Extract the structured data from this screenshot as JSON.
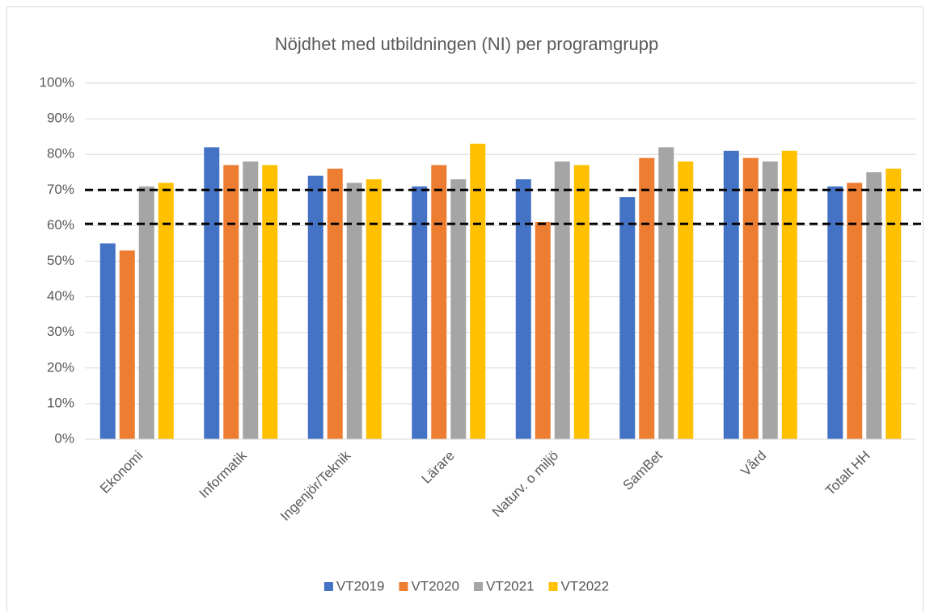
{
  "chart_data": {
    "type": "bar",
    "title": "Nöjdhet med utbildningen (NI) per programgrupp",
    "categories": [
      "Ekonomi",
      "Informatik",
      "Ingenjör/Teknik",
      "Lärare",
      "Naturv. o miljö",
      "SamBet",
      "Vård",
      "Totalt HH"
    ],
    "series": [
      {
        "name": "VT2019",
        "color": "#4472c4",
        "values": [
          55,
          82,
          74,
          71,
          73,
          68,
          81,
          71
        ]
      },
      {
        "name": "VT2020",
        "color": "#ed7d31",
        "values": [
          53,
          77,
          76,
          77,
          61,
          79,
          79,
          72
        ]
      },
      {
        "name": "VT2021",
        "color": "#a5a5a5",
        "values": [
          71,
          78,
          72,
          73,
          78,
          82,
          78,
          75
        ]
      },
      {
        "name": "VT2022",
        "color": "#ffc000",
        "values": [
          72,
          77,
          73,
          83,
          77,
          78,
          81,
          76
        ]
      }
    ],
    "ylim": [
      0,
      100
    ],
    "yticks": [
      {
        "value": 0,
        "label": "0%"
      },
      {
        "value": 10,
        "label": "10%"
      },
      {
        "value": 20,
        "label": "20%"
      },
      {
        "value": 30,
        "label": "30%"
      },
      {
        "value": 40,
        "label": "40%"
      },
      {
        "value": 50,
        "label": "50%"
      },
      {
        "value": 60,
        "label": "60%"
      },
      {
        "value": 70,
        "label": "70%"
      },
      {
        "value": 80,
        "label": "80%"
      },
      {
        "value": 90,
        "label": "90%"
      },
      {
        "value": 100,
        "label": "100%"
      }
    ],
    "reference_lines": [
      70,
      60.5
    ],
    "grid": true,
    "legend": "bottom"
  }
}
